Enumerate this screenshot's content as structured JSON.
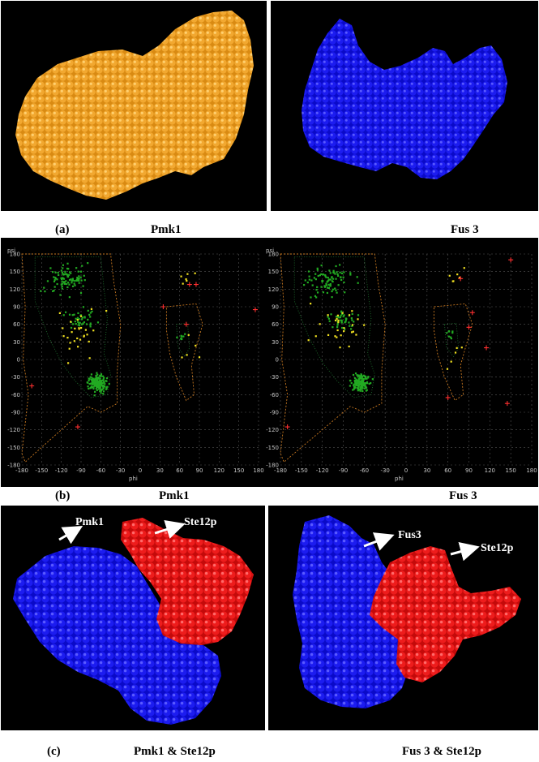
{
  "captions": {
    "a_letter": "(a)",
    "a_left": "Pmk1",
    "a_right": "Fus 3",
    "b_letter": "(b)",
    "b_left": "Pmk1",
    "b_right": "Fus 3",
    "c_letter": "(c)",
    "c_left": "Pmk1 & Ste12p",
    "c_right": "Fus 3 & Ste12p"
  },
  "structures": {
    "pmk1_color": "#e8a020",
    "fus3_color": "#1010e6",
    "ste12p_color": "#e61414"
  },
  "ramachandran": {
    "x_axis_label": "phi",
    "y_axis_label": "psi",
    "x_ticks": [
      "-180",
      "-150",
      "-120",
      "-90",
      "-60",
      "-30",
      "0",
      "30",
      "60",
      "90",
      "120",
      "150",
      "180"
    ],
    "y_ticks": [
      "180",
      "150",
      "120",
      "90",
      "60",
      "30",
      "0",
      "-30",
      "-60",
      "-90",
      "-120",
      "-150",
      "-180"
    ],
    "colors": {
      "core": "#22aa22",
      "allowed": "#f0e020",
      "outlier": "#ff3030",
      "contour": "#c87820"
    }
  },
  "complex_labels": {
    "left_a": "Pmk1",
    "left_b": "Ste12p",
    "right_a": "Fus3",
    "right_b": "Ste12p"
  }
}
